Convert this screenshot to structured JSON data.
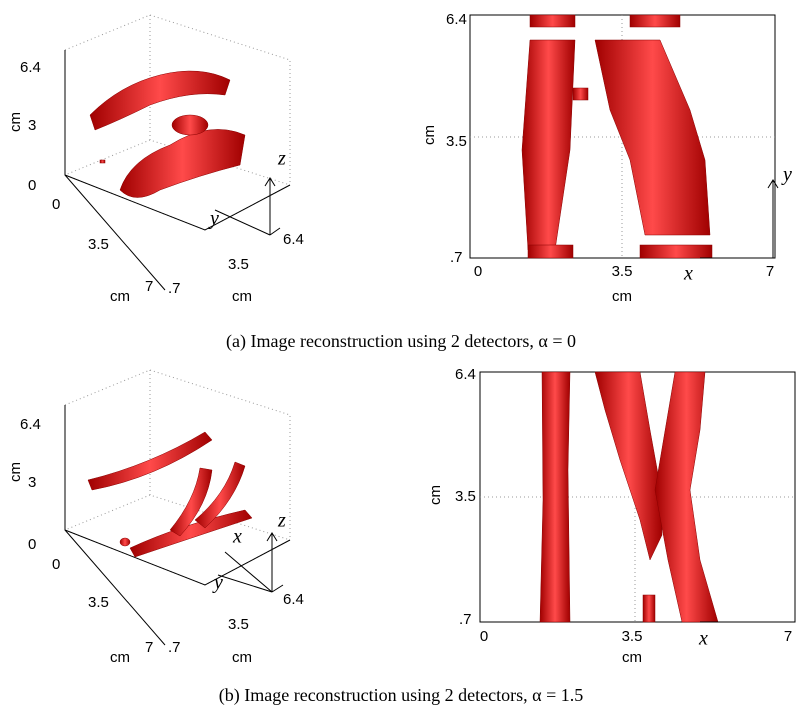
{
  "panels": [
    {
      "caption": "(a) Image reconstruction using 2 detectors, α = 0",
      "view3d": {
        "z_ticks": [
          "6.4",
          "3",
          "0"
        ],
        "z_unit": "cm",
        "y_ticks": [
          "0",
          "3.5",
          "7"
        ],
        "y_unit": "cm",
        "x_ticks": [
          ".7",
          "3.5",
          "6.4"
        ],
        "x_unit": "cm",
        "axis_letters": [
          "z",
          "y"
        ]
      },
      "view2d": {
        "y_ticks": [
          "6.4",
          "3.5",
          ".7"
        ],
        "y_unit": "cm",
        "x_ticks": [
          "0",
          "3.5",
          "7"
        ],
        "x_unit": "cm",
        "axis_letters": [
          "x",
          "y"
        ]
      }
    },
    {
      "caption": "(b) Image reconstruction using 2 detectors, α = 1.5",
      "view3d": {
        "z_ticks": [
          "6.4",
          "3",
          "0"
        ],
        "z_unit": "cm",
        "y_ticks": [
          "0",
          "3.5",
          "7"
        ],
        "y_unit": "cm",
        "x_ticks": [
          ".7",
          "3.5",
          "6.4"
        ],
        "x_unit": "cm",
        "axis_letters": [
          "z",
          "x",
          "y"
        ]
      },
      "view2d": {
        "y_ticks": [
          "6.4",
          "3.5",
          ".7"
        ],
        "y_unit": "cm",
        "x_ticks": [
          "0",
          "3.5",
          "7"
        ],
        "x_unit": "cm",
        "axis_letters": [
          "x"
        ]
      }
    }
  ]
}
